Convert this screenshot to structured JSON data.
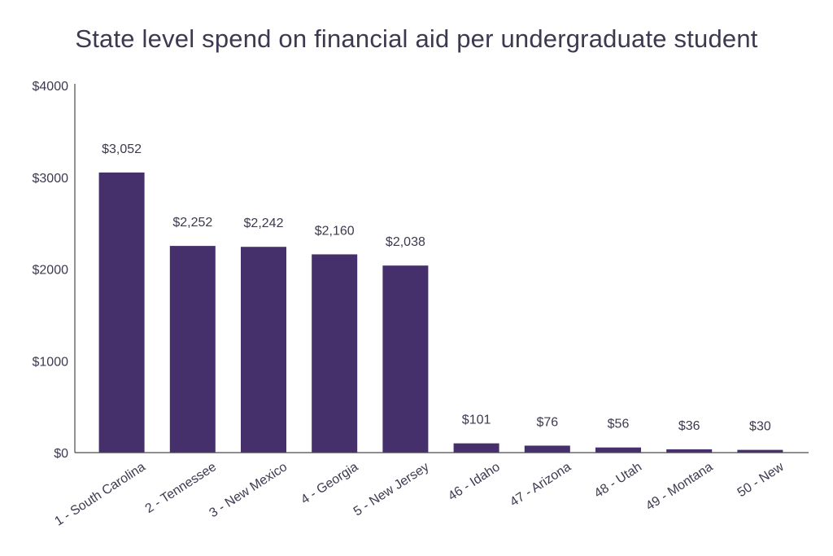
{
  "chart_data": {
    "type": "bar",
    "title": "State level spend on financial aid per undergraduate student",
    "xlabel": "",
    "ylabel": "",
    "categories": [
      "1 - South Carolina",
      "2 - Tennessee",
      "3 - New Mexico",
      "4 - Georgia",
      "5 - New Jersey",
      "46 - Idaho",
      "47 - Arizona",
      "48 - Utah",
      "49 - Montana",
      "50 - New"
    ],
    "values": [
      3052,
      2252,
      2242,
      2160,
      2038,
      101,
      76,
      56,
      36,
      30
    ],
    "data_labels": [
      "$3,052",
      "$2,252",
      "$2,242",
      "$2,160",
      "$2,038",
      "$101",
      "$76",
      "$56",
      "$36",
      "$30"
    ],
    "ylim": [
      0,
      4000
    ],
    "yticks": [
      0,
      1000,
      2000,
      3000,
      4000
    ],
    "ytick_labels": [
      "$0",
      "$1000",
      "$2000",
      "$3000",
      "$4000"
    ],
    "grid": false,
    "legend": "none",
    "bar_color": "#45306b",
    "axis_color": "#4a4a4a",
    "text_color": "#3d3950"
  }
}
